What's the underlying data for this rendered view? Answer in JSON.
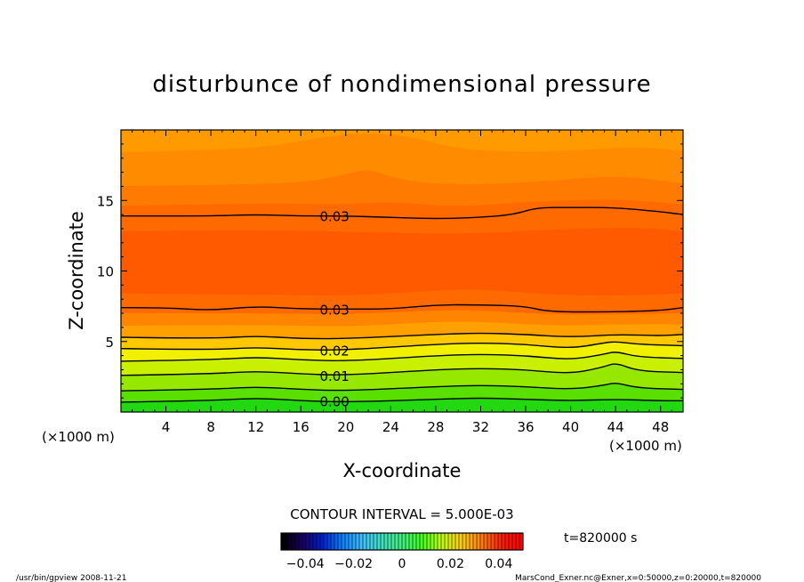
{
  "chart_data": {
    "type": "heatmap",
    "title": "disturbunce of nondimensional pressure",
    "xlabel": "X-coordinate",
    "ylabel": "Z-coordinate",
    "x_unit": "(×1000 m)",
    "y_unit": "(×1000 m)",
    "xlim": [
      0,
      50
    ],
    "ylim": [
      0,
      20
    ],
    "x_ticks": [
      4,
      8,
      12,
      16,
      20,
      24,
      28,
      32,
      36,
      40,
      44,
      48
    ],
    "y_ticks": [
      5,
      10,
      15
    ],
    "contour_interval_text": "CONTOUR INTERVAL = 5.000E-03",
    "time_text": "t=820000 s",
    "contour_labels": [
      {
        "text": "0.03",
        "x": 19,
        "z": 13.9
      },
      {
        "text": "0.03",
        "x": 19,
        "z": 7.3
      },
      {
        "text": "0.02",
        "x": 19,
        "z": 4.4
      },
      {
        "text": "0.01",
        "x": 19,
        "z": 2.6
      },
      {
        "text": "0.00",
        "x": 19,
        "z": 0.8
      }
    ],
    "contours": [
      {
        "level": 0.0,
        "labeled": true,
        "points": [
          [
            0,
            0.7
          ],
          [
            8,
            0.8
          ],
          [
            12,
            1.0
          ],
          [
            16,
            0.8
          ],
          [
            20,
            0.7
          ],
          [
            28,
            0.9
          ],
          [
            32,
            1.0
          ],
          [
            36,
            0.9
          ],
          [
            40,
            0.8
          ],
          [
            44,
            0.9
          ],
          [
            48,
            0.8
          ],
          [
            50,
            0.8
          ]
        ]
      },
      {
        "level": 0.005,
        "labeled": false,
        "points": [
          [
            0,
            1.5
          ],
          [
            8,
            1.6
          ],
          [
            12,
            1.8
          ],
          [
            16,
            1.6
          ],
          [
            20,
            1.5
          ],
          [
            28,
            1.8
          ],
          [
            32,
            1.9
          ],
          [
            36,
            1.8
          ],
          [
            40,
            1.6
          ],
          [
            43,
            1.9
          ],
          [
            44,
            2.1
          ],
          [
            46,
            1.7
          ],
          [
            50,
            1.6
          ]
        ]
      },
      {
        "level": 0.01,
        "labeled": true,
        "points": [
          [
            0,
            2.6
          ],
          [
            8,
            2.7
          ],
          [
            12,
            2.9
          ],
          [
            16,
            2.7
          ],
          [
            20,
            2.6
          ],
          [
            28,
            3.0
          ],
          [
            32,
            3.1
          ],
          [
            36,
            3.0
          ],
          [
            40,
            2.7
          ],
          [
            43,
            3.2
          ],
          [
            44,
            3.5
          ],
          [
            46,
            2.9
          ],
          [
            50,
            2.8
          ]
        ]
      },
      {
        "level": 0.015,
        "labeled": false,
        "points": [
          [
            0,
            3.6
          ],
          [
            8,
            3.7
          ],
          [
            12,
            3.9
          ],
          [
            16,
            3.7
          ],
          [
            20,
            3.6
          ],
          [
            28,
            4.0
          ],
          [
            32,
            4.1
          ],
          [
            36,
            4.0
          ],
          [
            40,
            3.7
          ],
          [
            43,
            4.1
          ],
          [
            44,
            4.3
          ],
          [
            46,
            3.9
          ],
          [
            50,
            3.8
          ]
        ]
      },
      {
        "level": 0.02,
        "labeled": true,
        "points": [
          [
            0,
            4.5
          ],
          [
            8,
            4.4
          ],
          [
            12,
            4.6
          ],
          [
            16,
            4.4
          ],
          [
            20,
            4.4
          ],
          [
            28,
            4.8
          ],
          [
            32,
            4.9
          ],
          [
            36,
            4.8
          ],
          [
            40,
            4.5
          ],
          [
            43,
            4.9
          ],
          [
            44,
            5.0
          ],
          [
            46,
            4.8
          ],
          [
            50,
            4.7
          ]
        ]
      },
      {
        "level": 0.025,
        "labeled": false,
        "points": [
          [
            0,
            5.3
          ],
          [
            8,
            5.2
          ],
          [
            12,
            5.4
          ],
          [
            16,
            5.2
          ],
          [
            20,
            5.2
          ],
          [
            28,
            5.5
          ],
          [
            32,
            5.6
          ],
          [
            36,
            5.5
          ],
          [
            40,
            5.3
          ],
          [
            44,
            5.5
          ],
          [
            48,
            5.4
          ],
          [
            50,
            5.5
          ]
        ]
      },
      {
        "level": 0.03,
        "labeled": true,
        "points": [
          [
            0,
            7.4
          ],
          [
            4,
            7.4
          ],
          [
            8,
            7.2
          ],
          [
            12,
            7.5
          ],
          [
            16,
            7.3
          ],
          [
            20,
            7.3
          ],
          [
            24,
            7.3
          ],
          [
            28,
            7.6
          ],
          [
            32,
            7.6
          ],
          [
            36,
            7.5
          ],
          [
            38,
            7.1
          ],
          [
            44,
            7.1
          ],
          [
            48,
            7.2
          ],
          [
            50,
            7.4
          ]
        ]
      },
      {
        "level": 0.03,
        "labeled": true,
        "points": [
          [
            0,
            13.9
          ],
          [
            4,
            13.9
          ],
          [
            8,
            13.9
          ],
          [
            12,
            14.0
          ],
          [
            16,
            13.9
          ],
          [
            20,
            13.9
          ],
          [
            24,
            13.8
          ],
          [
            28,
            13.7
          ],
          [
            32,
            13.8
          ],
          [
            35,
            14.0
          ],
          [
            37,
            14.5
          ],
          [
            40,
            14.5
          ],
          [
            44,
            14.5
          ],
          [
            48,
            14.2
          ],
          [
            50,
            14.0
          ]
        ]
      }
    ],
    "fill_bands": [
      {
        "top": [
          [
            0,
            20
          ],
          [
            50,
            20
          ]
        ],
        "color": "#ff9a00"
      },
      {
        "top": [
          [
            0,
            18.4
          ],
          [
            10,
            18.6
          ],
          [
            14,
            18.9
          ],
          [
            18,
            19.5
          ],
          [
            22,
            19.8
          ],
          [
            26,
            19.5
          ],
          [
            30,
            18.6
          ],
          [
            36,
            18.4
          ],
          [
            42,
            18.6
          ],
          [
            46,
            18.8
          ],
          [
            50,
            18.5
          ]
        ],
        "color": "#ff8c00"
      },
      {
        "top": [
          [
            0,
            16.0
          ],
          [
            12,
            16.1
          ],
          [
            18,
            16.4
          ],
          [
            22,
            17.3
          ],
          [
            24,
            16.6
          ],
          [
            28,
            16.1
          ],
          [
            36,
            16.2
          ],
          [
            44,
            16.8
          ],
          [
            50,
            16.2
          ]
        ],
        "color": "#ff7a00"
      },
      {
        "top": [
          [
            0,
            14.6
          ],
          [
            12,
            14.8
          ],
          [
            20,
            14.7
          ],
          [
            24,
            14.9
          ],
          [
            30,
            14.5
          ],
          [
            36,
            14.9
          ],
          [
            44,
            15.1
          ],
          [
            50,
            14.7
          ]
        ],
        "color": "#ff6a00"
      },
      {
        "top": [
          [
            0,
            12.8
          ],
          [
            12,
            12.9
          ],
          [
            24,
            12.7
          ],
          [
            30,
            12.6
          ],
          [
            38,
            12.9
          ],
          [
            46,
            13.1
          ],
          [
            50,
            12.8
          ]
        ],
        "color": "#ff5a00"
      },
      {
        "top": [
          [
            0,
            8.4
          ],
          [
            12,
            8.3
          ],
          [
            20,
            8.2
          ],
          [
            28,
            8.6
          ],
          [
            32,
            8.7
          ],
          [
            38,
            8.3
          ],
          [
            44,
            8.2
          ],
          [
            50,
            8.4
          ]
        ],
        "color": "#ff6a00"
      },
      {
        "top": [
          [
            0,
            7.0
          ],
          [
            12,
            7.0
          ],
          [
            20,
            6.9
          ],
          [
            28,
            7.2
          ],
          [
            32,
            7.2
          ],
          [
            38,
            6.9
          ],
          [
            44,
            6.9
          ],
          [
            50,
            7.0
          ]
        ],
        "color": "#ff8400"
      },
      {
        "top": [
          [
            0,
            6.1
          ],
          [
            12,
            6.2
          ],
          [
            20,
            6.0
          ],
          [
            28,
            6.4
          ],
          [
            32,
            6.4
          ],
          [
            38,
            6.1
          ],
          [
            44,
            6.2
          ],
          [
            50,
            6.2
          ]
        ],
        "color": "#ffa000"
      },
      {
        "top": [
          [
            0,
            5.3
          ],
          [
            8,
            5.2
          ],
          [
            12,
            5.4
          ],
          [
            16,
            5.2
          ],
          [
            20,
            5.2
          ],
          [
            28,
            5.5
          ],
          [
            32,
            5.6
          ],
          [
            36,
            5.5
          ],
          [
            40,
            5.3
          ],
          [
            44,
            5.5
          ],
          [
            48,
            5.4
          ],
          [
            50,
            5.5
          ]
        ],
        "color": "#ffc800"
      },
      {
        "top": [
          [
            0,
            4.5
          ],
          [
            8,
            4.4
          ],
          [
            12,
            4.6
          ],
          [
            16,
            4.4
          ],
          [
            20,
            4.4
          ],
          [
            28,
            4.8
          ],
          [
            32,
            4.9
          ],
          [
            36,
            4.8
          ],
          [
            40,
            4.5
          ],
          [
            43,
            4.9
          ],
          [
            44,
            5.0
          ],
          [
            46,
            4.8
          ],
          [
            50,
            4.7
          ]
        ],
        "color": "#f0f000"
      },
      {
        "top": [
          [
            0,
            3.6
          ],
          [
            8,
            3.7
          ],
          [
            12,
            3.9
          ],
          [
            16,
            3.7
          ],
          [
            20,
            3.6
          ],
          [
            28,
            4.0
          ],
          [
            32,
            4.1
          ],
          [
            36,
            4.0
          ],
          [
            40,
            3.7
          ],
          [
            43,
            4.1
          ],
          [
            44,
            4.3
          ],
          [
            46,
            3.9
          ],
          [
            50,
            3.8
          ]
        ],
        "color": "#c8f000"
      },
      {
        "top": [
          [
            0,
            2.6
          ],
          [
            8,
            2.7
          ],
          [
            12,
            2.9
          ],
          [
            16,
            2.7
          ],
          [
            20,
            2.6
          ],
          [
            28,
            3.0
          ],
          [
            32,
            3.1
          ],
          [
            36,
            3.0
          ],
          [
            40,
            2.7
          ],
          [
            43,
            3.2
          ],
          [
            44,
            3.5
          ],
          [
            46,
            2.9
          ],
          [
            50,
            2.8
          ]
        ],
        "color": "#96e800"
      },
      {
        "top": [
          [
            0,
            1.5
          ],
          [
            8,
            1.6
          ],
          [
            12,
            1.8
          ],
          [
            16,
            1.6
          ],
          [
            20,
            1.5
          ],
          [
            28,
            1.8
          ],
          [
            32,
            1.9
          ],
          [
            36,
            1.8
          ],
          [
            40,
            1.6
          ],
          [
            43,
            1.9
          ],
          [
            44,
            2.1
          ],
          [
            46,
            1.7
          ],
          [
            50,
            1.6
          ]
        ],
        "color": "#5ae000"
      },
      {
        "top": [
          [
            0,
            0.7
          ],
          [
            8,
            0.8
          ],
          [
            12,
            1.0
          ],
          [
            16,
            0.8
          ],
          [
            20,
            0.7
          ],
          [
            28,
            0.9
          ],
          [
            32,
            1.0
          ],
          [
            36,
            0.9
          ],
          [
            40,
            0.8
          ],
          [
            44,
            0.9
          ],
          [
            48,
            0.8
          ],
          [
            50,
            0.8
          ]
        ],
        "color": "#22d810"
      }
    ],
    "colorbar": {
      "range": [
        -0.05,
        0.05
      ],
      "ticks": [
        {
          "label": "−0.04",
          "value": -0.04
        },
        {
          "label": "−0.02",
          "value": -0.02
        },
        {
          "label": "0",
          "value": 0
        },
        {
          "label": "0.02",
          "value": 0.02
        },
        {
          "label": "0.04",
          "value": 0.04
        }
      ],
      "stops": [
        "#000000",
        "#1a0060",
        "#0020d0",
        "#1080ff",
        "#40c0ff",
        "#40e0c0",
        "#40f080",
        "#40ff20",
        "#c0ff00",
        "#ffd000",
        "#ff8000",
        "#ff2000",
        "#ff0000"
      ]
    }
  },
  "footer": {
    "left": "/usr/bin/gpview   2008-11-21",
    "right": "MarsCond_Exner.nc@Exner,x=0:50000,z=0:20000,t=820000"
  }
}
